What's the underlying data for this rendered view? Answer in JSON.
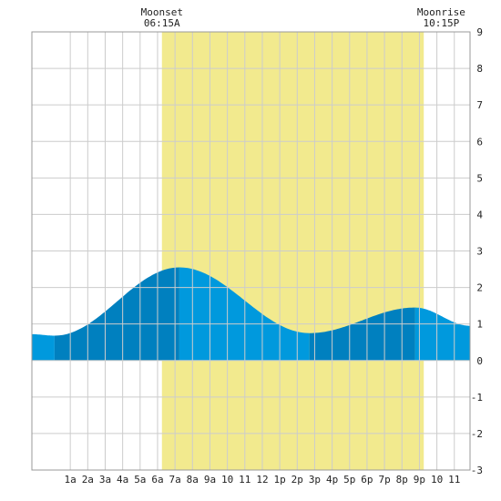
{
  "chart_data": {
    "type": "area",
    "title": "",
    "xlabel": "",
    "ylabel": "",
    "x_range_hours": [
      -1.2,
      23.9
    ],
    "ylim": [
      -3,
      9
    ],
    "y_ticks": [
      9,
      8,
      7,
      6,
      5,
      4,
      3,
      2,
      1,
      0,
      -1,
      -2,
      -3
    ],
    "x_ticks": [
      {
        "hour": 1,
        "label": "1a"
      },
      {
        "hour": 2,
        "label": "2a"
      },
      {
        "hour": 3,
        "label": "3a"
      },
      {
        "hour": 4,
        "label": "4a"
      },
      {
        "hour": 5,
        "label": "5a"
      },
      {
        "hour": 6,
        "label": "6a"
      },
      {
        "hour": 7,
        "label": "7a"
      },
      {
        "hour": 8,
        "label": "8a"
      },
      {
        "hour": 9,
        "label": "9a"
      },
      {
        "hour": 10,
        "label": "10"
      },
      {
        "hour": 11,
        "label": "11"
      },
      {
        "hour": 12,
        "label": "12"
      },
      {
        "hour": 13,
        "label": "1p"
      },
      {
        "hour": 14,
        "label": "2p"
      },
      {
        "hour": 15,
        "label": "3p"
      },
      {
        "hour": 16,
        "label": "4p"
      },
      {
        "hour": 17,
        "label": "5p"
      },
      {
        "hour": 18,
        "label": "6p"
      },
      {
        "hour": 19,
        "label": "7p"
      },
      {
        "hour": 20,
        "label": "8p"
      },
      {
        "hour": 21,
        "label": "9p"
      },
      {
        "hour": 22,
        "label": "10"
      },
      {
        "hour": 23,
        "label": "11"
      }
    ],
    "grid": true,
    "moon_visible_band": {
      "start_hour": 6.25,
      "end_hour": 21.25
    },
    "moonset": {
      "label": "Moonset",
      "time": "06:15A",
      "hour": 6.25
    },
    "moonrise": {
      "label": "Moonrise",
      "time": "10:15P",
      "hour": 22.25
    },
    "tide_extremes": [
      {
        "hour": -1.2,
        "value": 0.72
      },
      {
        "hour": 0.1,
        "value": 0.68
      },
      {
        "hour": 7.25,
        "value": 2.55
      },
      {
        "hour": 14.7,
        "value": 0.75
      },
      {
        "hour": 20.75,
        "value": 1.45
      },
      {
        "hour": 23.9,
        "value": 0.95
      }
    ],
    "shade_segments": [
      {
        "from_hour": -1.2,
        "to_hour": 0.1,
        "shade": "light"
      },
      {
        "from_hour": 0.1,
        "to_hour": 7.25,
        "shade": "dark"
      },
      {
        "from_hour": 7.25,
        "to_hour": 14.7,
        "shade": "light"
      },
      {
        "from_hour": 14.7,
        "to_hour": 20.75,
        "shade": "dark"
      },
      {
        "from_hour": 20.75,
        "to_hour": 23.9,
        "shade": "light"
      }
    ],
    "colors": {
      "band": "#f2ea8e",
      "water_light": "#0099dd",
      "water_dark": "#0080bf",
      "grid": "#cccccc",
      "border": "#999999"
    }
  }
}
